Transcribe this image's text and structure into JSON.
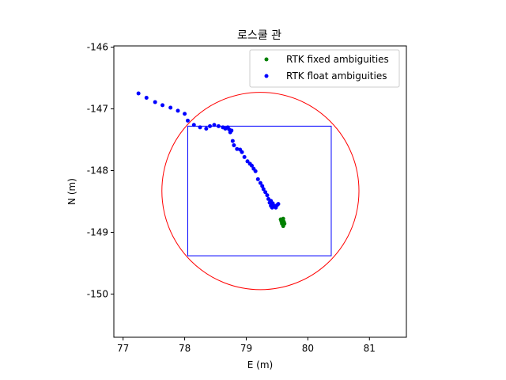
{
  "chart_data": {
    "type": "scatter",
    "title": "로스쿨 관",
    "xlabel": "E (m)",
    "ylabel": "N (m)",
    "xlim": [
      76.85,
      81.6
    ],
    "ylim": [
      -150.7,
      -145.98
    ],
    "xticks": [
      77,
      78,
      79,
      80,
      81
    ],
    "yticks": [
      -146,
      -147,
      -148,
      -149,
      -150
    ],
    "legend_position": "top-right",
    "series": [
      {
        "name": "RTK fixed ambiguities",
        "color": "#008000",
        "points": [
          [
            79.56,
            -148.79
          ],
          [
            79.58,
            -148.8
          ],
          [
            79.6,
            -148.78
          ],
          [
            79.57,
            -148.82
          ],
          [
            79.59,
            -148.84
          ],
          [
            79.61,
            -148.83
          ],
          [
            79.58,
            -148.86
          ],
          [
            79.6,
            -148.88
          ],
          [
            79.62,
            -148.86
          ],
          [
            79.6,
            -148.9
          ]
        ]
      },
      {
        "name": "RTK float ambiguities",
        "color": "#0000ff",
        "points": [
          [
            77.25,
            -146.75
          ],
          [
            77.38,
            -146.82
          ],
          [
            77.52,
            -146.89
          ],
          [
            77.64,
            -146.94
          ],
          [
            77.77,
            -146.98
          ],
          [
            77.89,
            -147.03
          ],
          [
            78.0,
            -147.08
          ],
          [
            78.05,
            -147.19
          ],
          [
            78.15,
            -147.26
          ],
          [
            78.25,
            -147.3
          ],
          [
            78.35,
            -147.32
          ],
          [
            78.41,
            -147.28
          ],
          [
            78.48,
            -147.26
          ],
          [
            78.55,
            -147.28
          ],
          [
            78.62,
            -147.3
          ],
          [
            78.66,
            -147.32
          ],
          [
            78.7,
            -147.3
          ],
          [
            78.72,
            -147.33
          ],
          [
            78.74,
            -147.38
          ],
          [
            78.76,
            -147.35
          ],
          [
            78.78,
            -147.52
          ],
          [
            78.8,
            -147.59
          ],
          [
            78.85,
            -147.65
          ],
          [
            78.9,
            -147.66
          ],
          [
            78.93,
            -147.7
          ],
          [
            78.97,
            -147.78
          ],
          [
            79.02,
            -147.85
          ],
          [
            79.06,
            -147.89
          ],
          [
            79.09,
            -147.92
          ],
          [
            79.12,
            -147.97
          ],
          [
            79.15,
            -148.01
          ],
          [
            79.19,
            -148.14
          ],
          [
            79.23,
            -148.2
          ],
          [
            79.26,
            -148.25
          ],
          [
            79.28,
            -148.3
          ],
          [
            79.31,
            -148.35
          ],
          [
            79.34,
            -148.4
          ],
          [
            79.36,
            -148.46
          ],
          [
            79.38,
            -148.52
          ],
          [
            79.4,
            -148.57
          ],
          [
            79.43,
            -148.53
          ],
          [
            79.45,
            -148.57
          ],
          [
            79.48,
            -148.6
          ],
          [
            79.5,
            -148.56
          ],
          [
            79.52,
            -148.54
          ],
          [
            79.42,
            -148.6
          ],
          [
            79.4,
            -148.49
          ]
        ]
      }
    ],
    "overlays": {
      "rectangle": {
        "color": "#0000ff",
        "x": [
          78.05,
          80.38
        ],
        "y": [
          -149.38,
          -147.28
        ]
      },
      "circle": {
        "color": "#ff0000",
        "center": [
          79.23,
          -148.33
        ],
        "radius": 1.6
      }
    }
  }
}
